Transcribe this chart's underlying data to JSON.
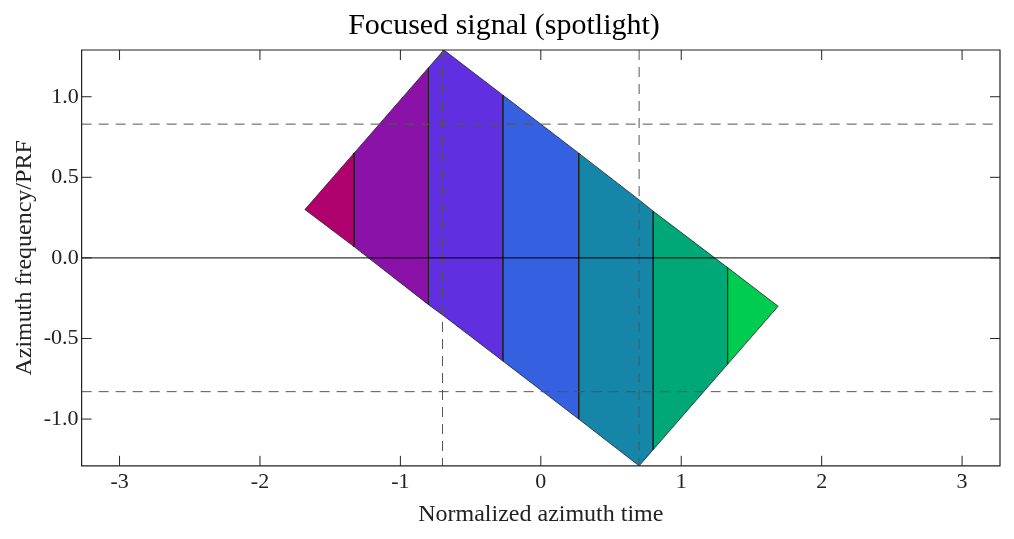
{
  "chart_data": {
    "type": "area",
    "title": "Focused signal (spotlight)",
    "xlabel": "Normalized azimuth time",
    "ylabel": "Azimuth frequency/PRF",
    "xlim": [
      -3.27,
      3.27
    ],
    "ylim": [
      -1.29,
      1.29
    ],
    "xticks": [
      -3,
      -2,
      -1,
      0,
      1,
      2,
      3
    ],
    "yticks": [
      {
        "value": -1,
        "label": "-1.0"
      },
      {
        "value": -0.5,
        "label": "-0.5"
      },
      {
        "value": 0,
        "label": "0.0"
      },
      {
        "value": 0.5,
        "label": "0.5"
      },
      {
        "value": 1,
        "label": "1.0"
      }
    ],
    "grid": false,
    "legend": false,
    "series": [
      {
        "color": "#b0006e",
        "x": [
          -1.68,
          -1.33,
          -1.33
        ],
        "values": [
          0.3,
          0.65,
          0.07
        ]
      },
      {
        "color": "#8a12a8",
        "x": [
          -1.33,
          -0.8,
          -0.8,
          -1.33
        ],
        "values": [
          0.65,
          1.18,
          -0.29,
          0.07
        ]
      },
      {
        "color": "#6030e0",
        "x": [
          -0.8,
          -0.69,
          -0.27,
          -0.27,
          -0.69,
          -0.8
        ],
        "values": [
          1.18,
          1.29,
          1.01,
          -0.64,
          -0.36,
          -0.29
        ]
      },
      {
        "color": "#3560e0",
        "x": [
          -0.27,
          0.27,
          0.27,
          -0.27
        ],
        "values": [
          1.01,
          0.65,
          -1.0,
          -0.64
        ]
      },
      {
        "color": "#1585a8",
        "x": [
          0.27,
          0.7,
          0.8,
          0.8,
          0.7,
          0.27
        ],
        "values": [
          0.65,
          0.36,
          0.29,
          -1.19,
          -1.29,
          -1.0
        ]
      },
      {
        "color": "#00a878",
        "x": [
          0.8,
          1.33,
          1.33,
          0.8
        ],
        "values": [
          0.29,
          -0.06,
          -0.66,
          -1.19
        ]
      },
      {
        "color": "#00cc50",
        "x": [
          1.33,
          1.69,
          1.33
        ],
        "values": [
          -0.06,
          -0.3,
          -0.66
        ]
      }
    ],
    "ref_lines": [
      {
        "axis": "x",
        "value": -0.7,
        "line_style": "dashed",
        "color": "#555555"
      },
      {
        "axis": "x",
        "value": 0.7,
        "line_style": "dashed",
        "color": "#555555"
      },
      {
        "axis": "y",
        "value": 0.83,
        "line_style": "dashed",
        "color": "#555555"
      },
      {
        "axis": "y",
        "value": -0.83,
        "line_style": "dashed",
        "color": "#555555"
      },
      {
        "axis": "y",
        "value": 0,
        "line_style": "solid",
        "color": "#000000"
      }
    ]
  }
}
